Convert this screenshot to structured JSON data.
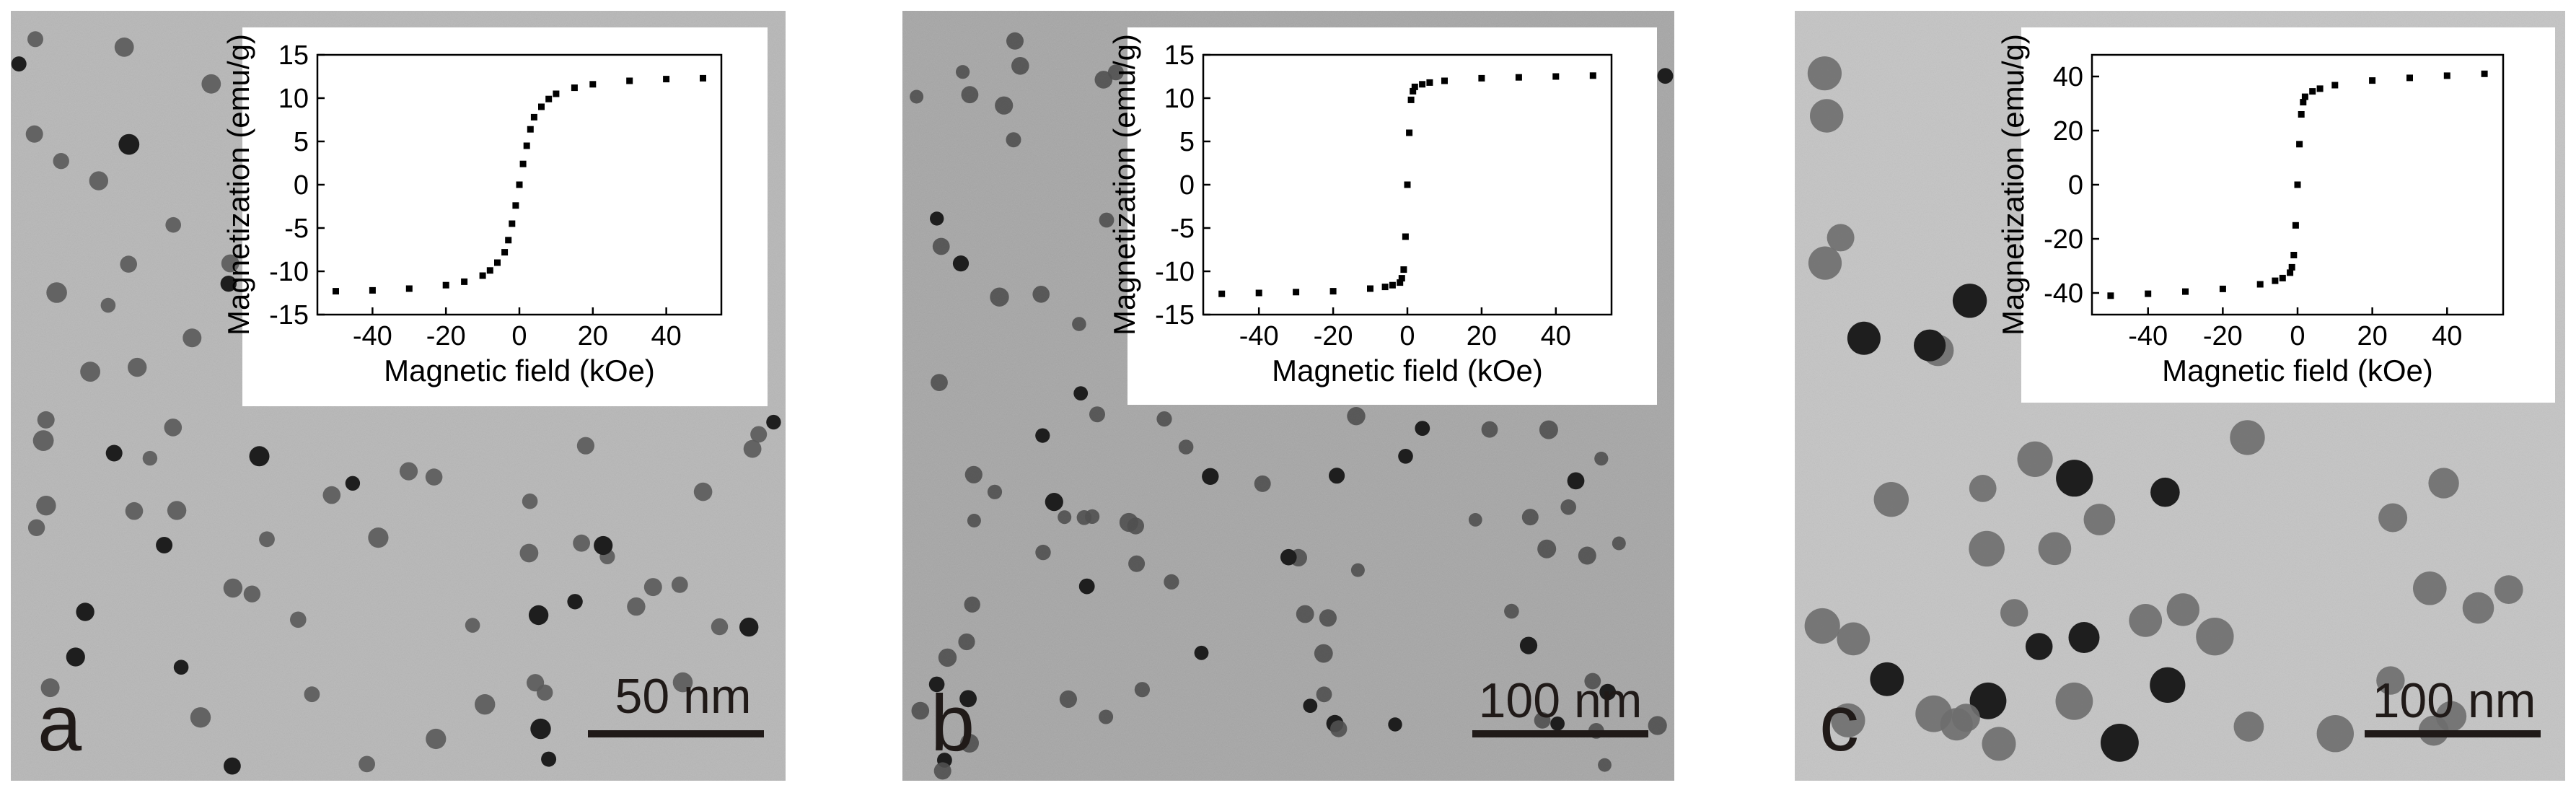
{
  "colors": {
    "page_bg": "#ffffff",
    "axis": "#000000",
    "marker": "#000000",
    "label_dark": "#201a18"
  },
  "panels": [
    {
      "letter": "a",
      "scale_bar": "50 nm",
      "background": "#b7b7b7",
      "particles": {
        "count": 70,
        "radius_data_px": 12,
        "shade": "#5a5a5a",
        "seed": 11
      }
    },
    {
      "letter": "b",
      "scale_bar": "100 nm",
      "background": "#a6a6a6",
      "particles": {
        "count": 85,
        "radius_data_px": 11,
        "shade": "#505050",
        "seed": 23
      }
    },
    {
      "letter": "c",
      "scale_bar": "100 nm",
      "background": "#c4c4c4",
      "particles": {
        "count": 45,
        "radius_data_px": 22,
        "shade": "#6e6e6e",
        "seed": 37
      }
    }
  ],
  "chart_data": [
    {
      "type": "scatter",
      "panel": "a",
      "xlabel": "Magnetic field (kOe)",
      "ylabel": "Magnetization (emu/g)",
      "xlim": [
        -55,
        55
      ],
      "ylim": [
        -15,
        15
      ],
      "xticks": [
        -40,
        -20,
        0,
        20,
        40
      ],
      "yticks": [
        -15,
        -10,
        -5,
        0,
        5,
        10,
        15
      ],
      "x": [
        -50,
        -40,
        -30,
        -20,
        -15,
        -10,
        -8,
        -6,
        -4,
        -3,
        -2,
        -1,
        0,
        1,
        2,
        3,
        4,
        6,
        8,
        10,
        15,
        20,
        30,
        40,
        50
      ],
      "y": [
        -12.3,
        -12.2,
        -12.0,
        -11.6,
        -11.2,
        -10.5,
        -9.9,
        -9.0,
        -7.8,
        -6.4,
        -4.5,
        -2.4,
        0,
        2.4,
        4.5,
        6.4,
        7.8,
        9.0,
        9.9,
        10.5,
        11.2,
        11.6,
        12.0,
        12.2,
        12.3
      ]
    },
    {
      "type": "scatter",
      "panel": "b",
      "xlabel": "Magnetic field (kOe)",
      "ylabel": "Magnetization (emu/g)",
      "xlim": [
        -55,
        55
      ],
      "ylim": [
        -15,
        15
      ],
      "xticks": [
        -40,
        -20,
        0,
        20,
        40
      ],
      "yticks": [
        -15,
        -10,
        -5,
        0,
        5,
        10,
        15
      ],
      "x": [
        -50,
        -40,
        -30,
        -20,
        -10,
        -6,
        -4,
        -2,
        -1.5,
        -1,
        -0.5,
        0,
        0.5,
        1,
        1.5,
        2,
        4,
        6,
        10,
        20,
        30,
        40,
        50
      ],
      "y": [
        -12.6,
        -12.5,
        -12.4,
        -12.3,
        -12.0,
        -11.8,
        -11.6,
        -11.3,
        -10.8,
        -9.8,
        -6.0,
        0,
        6.0,
        9.8,
        10.8,
        11.3,
        11.6,
        11.8,
        12.0,
        12.3,
        12.4,
        12.5,
        12.6
      ]
    },
    {
      "type": "scatter",
      "panel": "c",
      "xlabel": "Magnetic field (kOe)",
      "ylabel": "Magnetization (emu/g)",
      "xlim": [
        -55,
        55
      ],
      "ylim": [
        -48,
        48
      ],
      "xticks": [
        -40,
        -20,
        0,
        20,
        40
      ],
      "yticks": [
        -40,
        -20,
        0,
        20,
        40
      ],
      "x": [
        -50,
        -40,
        -30,
        -20,
        -10,
        -6,
        -4,
        -2,
        -1.5,
        -1,
        -0.5,
        0,
        0.5,
        1,
        1.5,
        2,
        4,
        6,
        10,
        20,
        30,
        40,
        50
      ],
      "y": [
        -41,
        -40.3,
        -39.5,
        -38.5,
        -36.8,
        -35.5,
        -34.5,
        -32.5,
        -30.5,
        -26,
        -15,
        0,
        15,
        26,
        30.5,
        32.5,
        34.5,
        35.5,
        36.8,
        38.5,
        39.5,
        40.3,
        41
      ]
    }
  ]
}
